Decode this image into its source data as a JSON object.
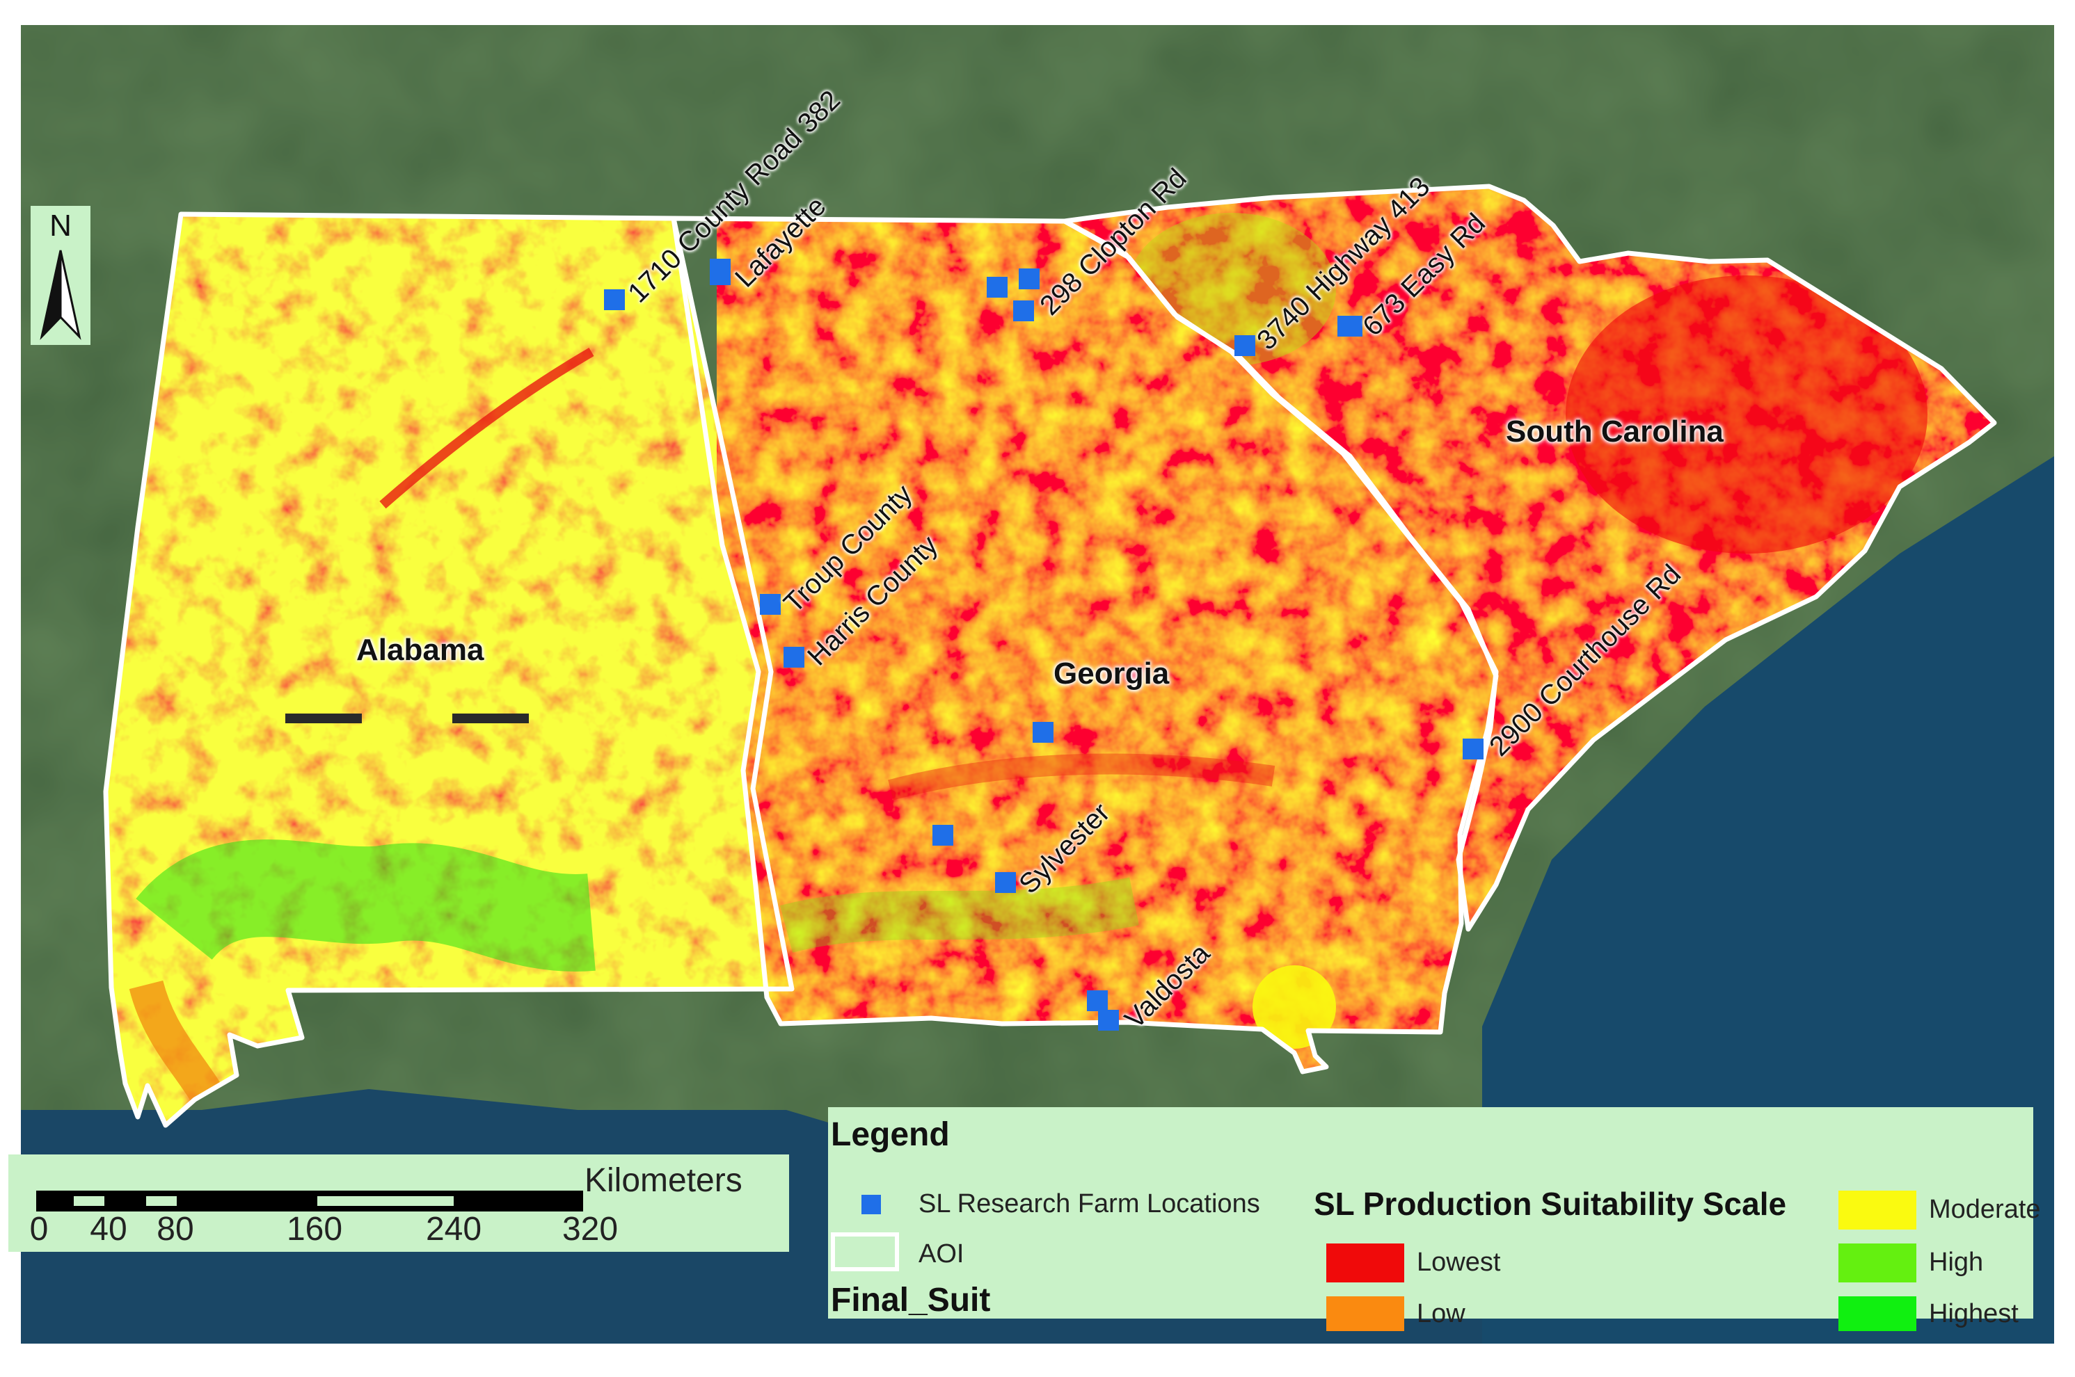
{
  "map": {
    "states": [
      {
        "id": "alabama",
        "label": "Alabama"
      },
      {
        "id": "georgia",
        "label": "Georgia"
      },
      {
        "id": "south-carolina",
        "label": "South Carolina"
      }
    ],
    "farm_locations": [
      {
        "id": "county-road-382",
        "label": "1710 County Road 382"
      },
      {
        "id": "lafayette",
        "label": "Lafayette"
      },
      {
        "id": "clopton-rd",
        "label": "298 Clopton Rd"
      },
      {
        "id": "highway-413",
        "label": "3740 Highway 413"
      },
      {
        "id": "easy-rd",
        "label": "673 Easy Rd"
      },
      {
        "id": "troup-county",
        "label": "Troup County"
      },
      {
        "id": "harris-county",
        "label": "Harris County"
      },
      {
        "id": "courthouse-rd",
        "label": "2900 Courthouse Rd"
      },
      {
        "id": "sylvester",
        "label": "Sylvester"
      },
      {
        "id": "valdosta",
        "label": "Valdosta"
      },
      {
        "id": "unlabeled-1",
        "label": ""
      },
      {
        "id": "unlabeled-2",
        "label": ""
      }
    ],
    "north_label": "N",
    "scale_bar": {
      "unit": "Kilometers",
      "ticks": [
        "0",
        "40",
        "80",
        "160",
        "240",
        "320"
      ]
    }
  },
  "legend": {
    "title": "Legend",
    "farm_locations_label": "SL Research Farm Locations",
    "aoi_label": "AOI",
    "field_name": "Final_Suit",
    "scale_title": "SL Production Suitability Scale",
    "classes": [
      {
        "label": "Lowest",
        "color": "#f00a0a"
      },
      {
        "label": "Low",
        "color": "#fa8a10"
      },
      {
        "label": "Moderate",
        "color": "#fafa10"
      },
      {
        "label": "High",
        "color": "#64f010"
      },
      {
        "label": "Highest",
        "color": "#10f010"
      }
    ]
  },
  "colors": {
    "marker": "#1f6fe8",
    "aoi_outline": "#ffffff",
    "legend_background": "#c9f2c8",
    "ocean": "#174a6b",
    "land": "#2e5a2b"
  }
}
